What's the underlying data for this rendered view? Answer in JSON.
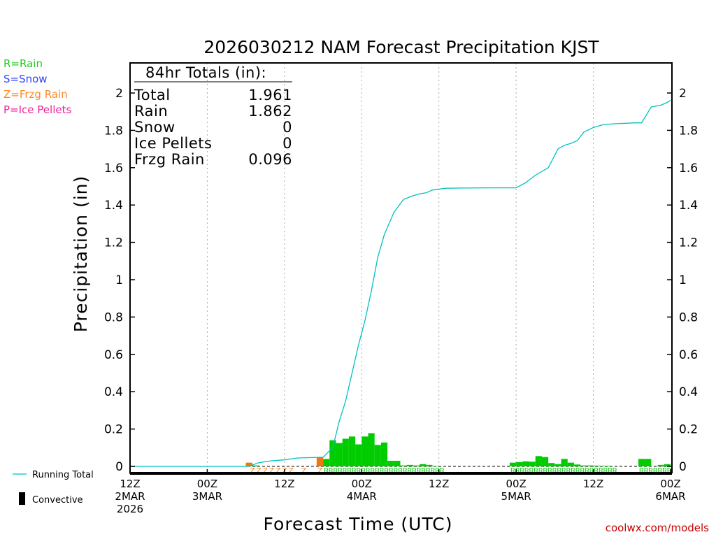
{
  "title": "2026030212 NAM Forecast Precipitation KJST",
  "credit": "coolwx.com/models",
  "ptype_legend": [
    {
      "label": "R=Rain",
      "color": "#22cc22"
    },
    {
      "label": "S=Snow",
      "color": "#3344ff"
    },
    {
      "label": "Z=Frzg Rain",
      "color": "#ff8822"
    },
    {
      "label": "P=Ice Pellets",
      "color": "#ee2299"
    }
  ],
  "series_legend": {
    "running_total": "Running Total",
    "convective": "Convective"
  },
  "colors": {
    "running_total": "#00c0c0",
    "rain_bar": "#00cc00",
    "frzg_bar": "#ee7711",
    "rain_text": "#22cc22",
    "frzg_text": "#ff8822"
  },
  "totals": {
    "header": "84hr Totals (in):",
    "rows": [
      {
        "label": "Total",
        "value": "1.961"
      },
      {
        "label": "Rain",
        "value": "1.862"
      },
      {
        "label": "Snow",
        "value": "0"
      },
      {
        "label": "Ice Pellets",
        "value": "0"
      },
      {
        "label": "Frzg Rain",
        "value": "0.096"
      }
    ]
  },
  "chart_data": {
    "type": "bar",
    "title": "2026030212 NAM Forecast Precipitation KJST",
    "xlabel": "Forecast Time (UTC)",
    "ylabel": "Precipitation (in)",
    "ylim": [
      0,
      2.15
    ],
    "xlim_hours": [
      0,
      84
    ],
    "yticks": [
      "0",
      "0.2",
      "0.4",
      "0.6",
      "0.8",
      "1",
      "1.2",
      "1.4",
      "1.6",
      "1.8",
      "2"
    ],
    "ytick_values": [
      0,
      0.2,
      0.4,
      0.6,
      0.8,
      1,
      1.2,
      1.4,
      1.6,
      1.8,
      2
    ],
    "xticks": [
      {
        "hour": 0,
        "lines": [
          "12Z",
          "2MAR",
          "2026"
        ]
      },
      {
        "hour": 12,
        "lines": [
          "00Z",
          "3MAR"
        ]
      },
      {
        "hour": 24,
        "lines": [
          "12Z"
        ]
      },
      {
        "hour": 36,
        "lines": [
          "00Z",
          "4MAR"
        ]
      },
      {
        "hour": 48,
        "lines": [
          "12Z"
        ]
      },
      {
        "hour": 60,
        "lines": [
          "00Z",
          "5MAR"
        ]
      },
      {
        "hour": 72,
        "lines": [
          "12Z"
        ]
      },
      {
        "hour": 84,
        "lines": [
          "00Z",
          "6MAR"
        ]
      }
    ],
    "grid_hours": [
      12,
      24,
      36,
      48,
      60,
      72
    ],
    "running_total": {
      "hours": [
        0,
        18.5,
        20,
        22,
        24,
        26,
        28,
        30,
        31.5,
        32.5,
        33.5,
        34.5,
        35.5,
        36.5,
        37.5,
        38.5,
        39.5,
        41,
        42.5,
        44,
        45,
        46,
        47,
        49,
        52,
        56,
        60,
        61.5,
        63,
        65,
        66.5,
        67.5,
        68.5,
        69.5,
        70.5,
        72,
        73.5,
        75,
        78.5,
        79.5,
        81,
        82.5,
        83.5,
        84
      ],
      "values": [
        0,
        0,
        0.02,
        0.03,
        0.035,
        0.045,
        0.047,
        0.049,
        0.1,
        0.24,
        0.35,
        0.5,
        0.65,
        0.78,
        0.94,
        1.12,
        1.24,
        1.36,
        1.43,
        1.45,
        1.46,
        1.465,
        1.48,
        1.49,
        1.491,
        1.492,
        1.492,
        1.52,
        1.56,
        1.6,
        1.7,
        1.72,
        1.73,
        1.745,
        1.79,
        1.815,
        1.83,
        1.835,
        1.84,
        1.84,
        1.925,
        1.935,
        1.95,
        1.961
      ]
    },
    "rain_bars": {
      "hours": [
        19,
        20,
        31,
        32,
        33,
        34,
        35,
        36,
        37,
        38,
        39,
        40,
        41,
        42,
        43,
        44,
        45,
        46,
        47,
        48,
        60,
        61,
        62,
        63,
        64,
        65,
        66,
        67,
        68,
        69,
        70,
        71,
        72,
        73,
        74,
        75,
        80,
        81,
        83,
        84
      ],
      "values": [
        0.012,
        0.005,
        0.04,
        0.14,
        0.125,
        0.148,
        0.16,
        0.118,
        0.16,
        0.178,
        0.115,
        0.128,
        0.03,
        0.03,
        0.005,
        0.008,
        0.005,
        0.012,
        0.008,
        0.002,
        0.02,
        0.023,
        0.027,
        0.025,
        0.055,
        0.05,
        0.018,
        0.012,
        0.04,
        0.02,
        0.01,
        0.005,
        0.005,
        0.004,
        0.003,
        0.003,
        0.04,
        0.04,
        0.008,
        0.012
      ]
    },
    "frzg_bars": {
      "hours": [
        19,
        30
      ],
      "values": [
        0.02,
        0.05
      ]
    },
    "ptype_marks": [
      {
        "start_hour": 19,
        "end_hour": 25,
        "char": "Z",
        "type": "frzg"
      },
      {
        "start_hour": 27,
        "end_hour": 27,
        "char": "Z",
        "type": "frzg"
      },
      {
        "start_hour": 29.5,
        "end_hour": 29.5,
        "char": "Z",
        "type": "frzg"
      },
      {
        "start_hour": 30.5,
        "end_hour": 49,
        "char": "R",
        "type": "rain"
      },
      {
        "start_hour": 59.5,
        "end_hour": 76,
        "char": "R",
        "type": "rain"
      },
      {
        "start_hour": 79.5,
        "end_hour": 84,
        "char": "R",
        "type": "rain"
      }
    ]
  }
}
